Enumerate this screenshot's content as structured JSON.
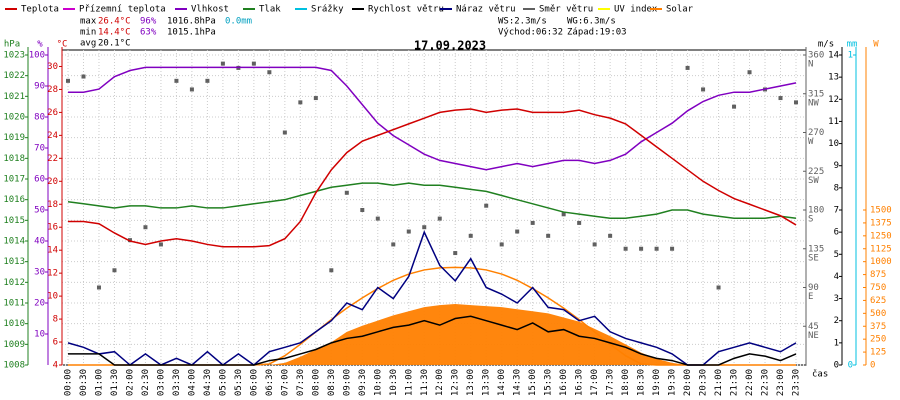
{
  "chart_data": {
    "type": "line",
    "title": "17.09.2023",
    "x_label": "čas",
    "categories": [
      "00:00",
      "00:30",
      "01:00",
      "01:30",
      "02:00",
      "02:30",
      "03:00",
      "03:30",
      "04:00",
      "04:30",
      "05:00",
      "05:30",
      "06:00",
      "06:30",
      "07:00",
      "07:30",
      "08:00",
      "08:30",
      "09:00",
      "09:30",
      "10:00",
      "10:30",
      "11:00",
      "11:30",
      "12:00",
      "12:30",
      "13:00",
      "13:30",
      "14:00",
      "14:30",
      "15:00",
      "15:30",
      "16:00",
      "16:30",
      "17:00",
      "17:30",
      "18:00",
      "18:30",
      "19:00",
      "19:30",
      "20:00",
      "20:30",
      "21:00",
      "21:30",
      "22:00",
      "22:30",
      "23:00",
      "23:30"
    ],
    "legend": [
      {
        "name": "Teplota",
        "color": "#d00000"
      },
      {
        "name": "Přízemní teplota",
        "color": "#cc00cc"
      },
      {
        "name": "Vlhkost",
        "color": "#8000c0"
      },
      {
        "name": "Tlak",
        "color": "#208020"
      },
      {
        "name": "Srážky",
        "color": "#00c0e0"
      },
      {
        "name": "Rychlost větru",
        "color": "#000000"
      },
      {
        "name": "Náraz větru",
        "color": "#000080"
      },
      {
        "name": "Směr větru",
        "color": "#606060"
      },
      {
        "name": "UV index",
        "color": "#ffff00"
      },
      {
        "name": "Solar",
        "color": "#ff8000"
      }
    ],
    "stats": [
      {
        "label": "max",
        "values": [
          {
            "text": "26.4°C",
            "color": "#d00000"
          },
          {
            "text": "96%",
            "color": "#8000c0"
          },
          {
            "text": "1016.8hPa",
            "color": "#000000"
          },
          {
            "text": "0.0mm",
            "color": "#00a0c0"
          }
        ]
      },
      {
        "label": "min",
        "values": [
          {
            "text": "14.4°C",
            "color": "#d00000"
          },
          {
            "text": "63%",
            "color": "#8000c0"
          },
          {
            "text": "1015.1hPa",
            "color": "#000000"
          }
        ]
      },
      {
        "label": "avg",
        "values": [
          {
            "text": "20.1°C",
            "color": "#000000"
          }
        ]
      }
    ],
    "wind_info": [
      "WS:2.3m/s",
      "WG:6.3m/s",
      "Východ:06:32",
      "Západ:19:03"
    ],
    "grid": true,
    "axes": [
      {
        "unit": "hPa",
        "side": "left",
        "color": "#208020",
        "ylim": [
          1008,
          1023
        ],
        "yticks": [
          1008,
          1009,
          1010,
          1011,
          1012,
          1013,
          1014,
          1015,
          1016,
          1017,
          1018,
          1019,
          1020,
          1021,
          1022,
          1023
        ]
      },
      {
        "unit": "%",
        "side": "left",
        "color": "#8000c0",
        "ylim": [
          0,
          100
        ],
        "yticks": [
          10,
          20,
          30,
          40,
          50,
          60,
          70,
          80,
          90,
          100
        ]
      },
      {
        "unit": "°C",
        "side": "left",
        "color": "#d00000",
        "ylim": [
          4,
          31
        ],
        "yticks": [
          4,
          6,
          8,
          10,
          12,
          14,
          16,
          18,
          20,
          22,
          24,
          26,
          28,
          30
        ]
      },
      {
        "unit": "m/s",
        "side": "right",
        "color": "#000000",
        "ylim": [
          0,
          14
        ],
        "yticks": [
          0,
          1,
          2,
          3,
          4,
          5,
          6,
          7,
          8,
          9,
          10,
          11,
          12,
          13,
          14
        ]
      },
      {
        "side": "right",
        "color": "#606060",
        "ylim": [
          0,
          360
        ],
        "yticks": [
          {
            "value": 45,
            "label": "NE"
          },
          {
            "value": 90,
            "label": "E"
          },
          {
            "value": 135,
            "label": "SE"
          },
          {
            "value": 180,
            "label": "S"
          },
          {
            "value": 225,
            "label": "SW"
          },
          {
            "value": 270,
            "label": "W"
          },
          {
            "value": 315,
            "label": "NW"
          },
          {
            "value": 360,
            "label": "N"
          }
        ]
      },
      {
        "unit": "mm",
        "side": "right",
        "color": "#00c0e0",
        "ylim": [
          0,
          1
        ],
        "yticks": [
          0,
          1
        ]
      },
      {
        "unit": "W",
        "side": "right",
        "color": "#ff8000",
        "ylim": [
          0,
          3000
        ],
        "yticks": [
          0,
          125,
          250,
          375,
          500,
          625,
          750,
          875,
          1000,
          1125,
          1250,
          1375,
          1500
        ]
      }
    ],
    "series": [
      {
        "name": "Solar",
        "style": "area",
        "axis": "W",
        "color": "#ff8000",
        "values": [
          0,
          0,
          0,
          0,
          0,
          0,
          0,
          0,
          0,
          0,
          0,
          0,
          0,
          0,
          20,
          80,
          150,
          220,
          320,
          380,
          430,
          480,
          520,
          560,
          580,
          590,
          580,
          570,
          560,
          540,
          520,
          500,
          460,
          420,
          350,
          280,
          200,
          120,
          60,
          20,
          0,
          0,
          0,
          0,
          0,
          0,
          0,
          0
        ]
      },
      {
        "name": "Solar max",
        "style": "line",
        "axis": "W",
        "color": "#ff8000",
        "values": [
          0,
          0,
          0,
          0,
          0,
          0,
          0,
          0,
          0,
          0,
          0,
          0,
          0,
          10,
          90,
          200,
          320,
          440,
          550,
          650,
          740,
          820,
          880,
          920,
          940,
          945,
          940,
          920,
          880,
          820,
          740,
          650,
          550,
          440,
          320,
          200,
          90,
          10,
          0,
          0,
          0,
          0,
          0,
          0,
          0,
          0,
          0,
          0
        ]
      },
      {
        "name": "Směr větru",
        "style": "points",
        "axis": "dir",
        "color": "#606060",
        "values": [
          330,
          335,
          90,
          110,
          145,
          160,
          140,
          330,
          320,
          330,
          350,
          345,
          350,
          340,
          270,
          305,
          310,
          110,
          200,
          180,
          170,
          140,
          155,
          160,
          170,
          130,
          150,
          185,
          140,
          155,
          165,
          150,
          175,
          165,
          140,
          150,
          135,
          135,
          135,
          135,
          345,
          320,
          90,
          300,
          340,
          320,
          310,
          305
        ]
      },
      {
        "name": "Náraz větru",
        "style": "line",
        "axis": "m/s",
        "color": "#000080",
        "values": [
          1,
          0.8,
          0.5,
          0.6,
          0,
          0.5,
          0,
          0.3,
          0,
          0.6,
          0,
          0.5,
          0,
          0.6,
          0.8,
          1.0,
          1.5,
          2.0,
          2.8,
          2.5,
          3.5,
          3.0,
          4.0,
          6.0,
          4.5,
          3.8,
          4.8,
          3.5,
          3.2,
          2.8,
          3.5,
          2.6,
          2.5,
          2.0,
          2.2,
          1.5,
          1.2,
          1.0,
          0.8,
          0.5,
          0,
          0,
          0.6,
          0.8,
          1.0,
          0.8,
          0.6,
          1.0
        ]
      },
      {
        "name": "Rychlost větru",
        "style": "line",
        "axis": "m/s",
        "color": "#000000",
        "values": [
          0.5,
          0.5,
          0.5,
          0,
          0,
          0,
          0,
          0,
          0,
          0,
          0,
          0,
          0,
          0.2,
          0.3,
          0.5,
          0.7,
          1.0,
          1.2,
          1.3,
          1.5,
          1.7,
          1.8,
          2.0,
          1.8,
          2.1,
          2.2,
          2.0,
          1.8,
          1.6,
          1.9,
          1.5,
          1.6,
          1.3,
          1.2,
          1.0,
          0.8,
          0.5,
          0.3,
          0.2,
          0,
          0,
          0,
          0.3,
          0.5,
          0.4,
          0.2,
          0.5
        ]
      },
      {
        "name": "Tlak",
        "style": "line",
        "axis": "hPa",
        "color": "#208020",
        "values": [
          1015.9,
          1015.8,
          1015.7,
          1015.6,
          1015.7,
          1015.7,
          1015.6,
          1015.6,
          1015.7,
          1015.6,
          1015.6,
          1015.7,
          1015.8,
          1015.9,
          1016.0,
          1016.2,
          1016.4,
          1016.6,
          1016.7,
          1016.8,
          1016.8,
          1016.7,
          1016.8,
          1016.7,
          1016.7,
          1016.6,
          1016.5,
          1016.4,
          1016.2,
          1016.0,
          1015.8,
          1015.6,
          1015.4,
          1015.3,
          1015.2,
          1015.1,
          1015.1,
          1015.2,
          1015.3,
          1015.5,
          1015.5,
          1015.3,
          1015.2,
          1015.1,
          1015.1,
          1015.1,
          1015.2,
          1015.1
        ]
      },
      {
        "name": "Vlhkost",
        "style": "line",
        "axis": "%",
        "color": "#8000c0",
        "values": [
          88,
          88,
          89,
          93,
          95,
          96,
          96,
          96,
          96,
          96,
          96,
          96,
          96,
          96,
          96,
          96,
          96,
          95,
          90,
          84,
          78,
          74,
          71,
          68,
          66,
          65,
          64,
          63,
          64,
          65,
          64,
          65,
          66,
          66,
          65,
          66,
          68,
          72,
          75,
          78,
          82,
          85,
          87,
          88,
          88,
          89,
          90,
          91
        ]
      },
      {
        "name": "Teplota",
        "style": "line",
        "axis": "°C",
        "color": "#d00000",
        "values": [
          16.5,
          16.5,
          16.3,
          15.5,
          14.8,
          14.5,
          14.8,
          15,
          14.8,
          14.5,
          14.3,
          14.3,
          14.3,
          14.4,
          15,
          16.5,
          19,
          21,
          22.5,
          23.5,
          24,
          24.5,
          25,
          25.5,
          26,
          26.2,
          26.3,
          26,
          26.2,
          26.3,
          26,
          26,
          26,
          26.2,
          25.8,
          25.5,
          25,
          24,
          23,
          22,
          21,
          20,
          19.2,
          18.5,
          18,
          17.5,
          17,
          16.2
        ]
      }
    ]
  }
}
